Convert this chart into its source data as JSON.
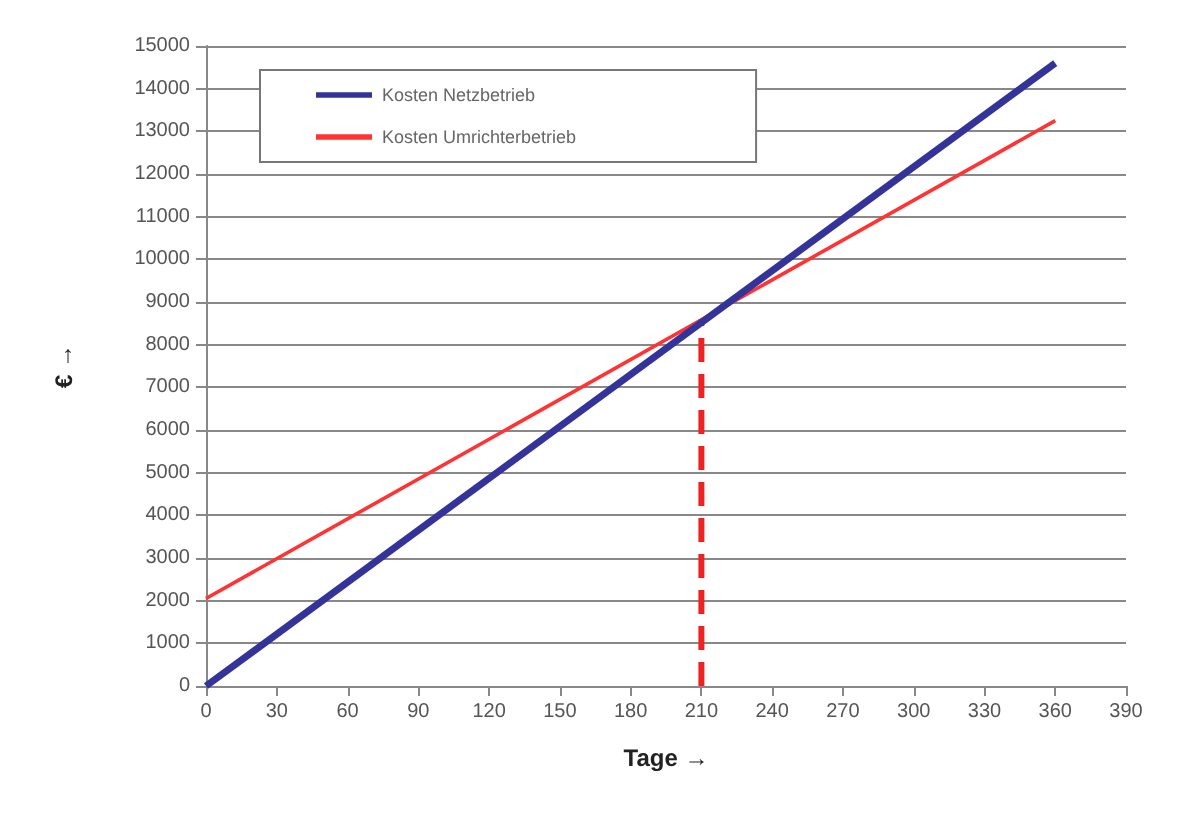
{
  "chart_data": {
    "type": "line",
    "xlabel": "Tage →",
    "ylabel": "€ →",
    "xlim": [
      0,
      390
    ],
    "xticks": [
      0,
      30,
      60,
      90,
      120,
      150,
      180,
      210,
      240,
      270,
      300,
      330,
      360,
      390
    ],
    "ylim": [
      0,
      15000
    ],
    "yticks": [
      0,
      1000,
      2000,
      3000,
      4000,
      5000,
      6000,
      7000,
      8000,
      9000,
      10000,
      11000,
      12000,
      13000,
      14000,
      15000
    ],
    "grid": "y",
    "legend": "top left",
    "marker": "none",
    "series": [
      {
        "name": "Kosten Netzbetrieb",
        "color": "#33339a",
        "x": [
          0,
          360
        ],
        "values": [
          0,
          14600
        ]
      },
      {
        "name": "Kosten Umrichterbetrieb",
        "color": "#ff3333",
        "x": [
          0,
          360
        ],
        "values": [
          2050,
          13250
        ]
      },
      {
        "color": "#ee2222",
        "x": [
          210,
          210
        ],
        "values": [
          0,
          8600
        ],
        "line_style": "dashed"
      }
    ]
  }
}
